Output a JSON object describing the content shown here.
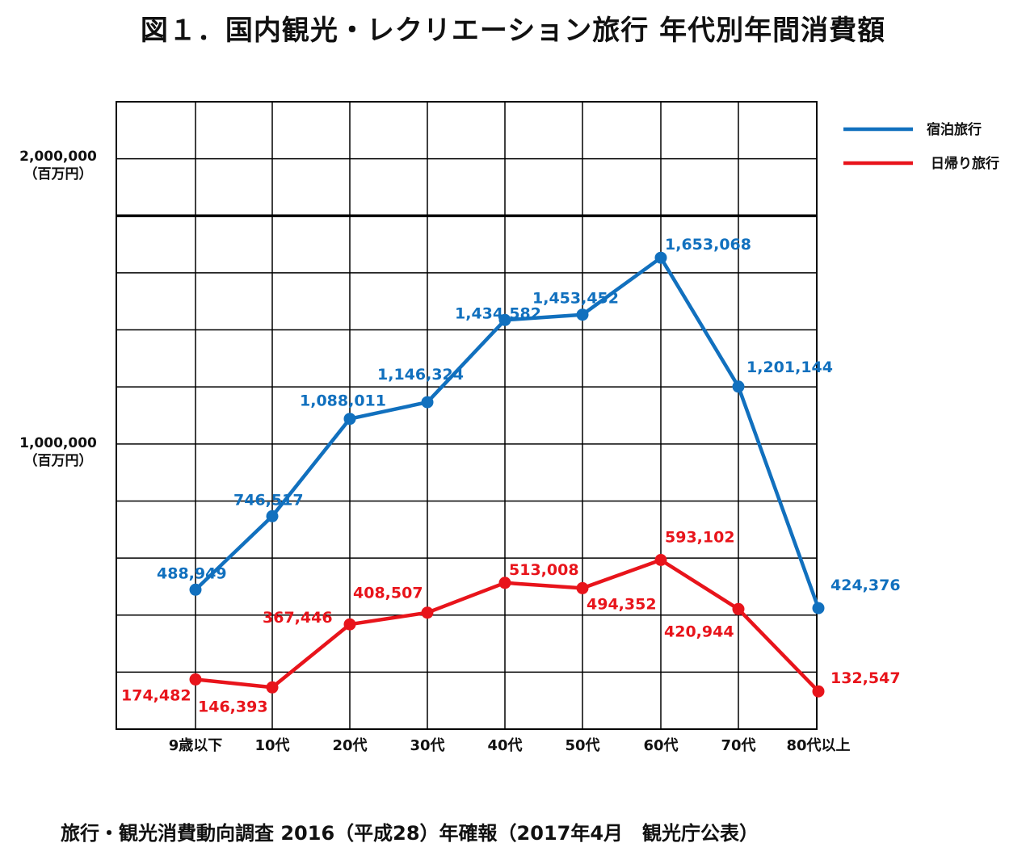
{
  "title": "図１．国内観光・レクリエーション旅行  年代別年間消費額",
  "source": "旅行・観光消費動向調査  2016（平成28）年確報（2017年4月　観光庁公表）",
  "chart_data": {
    "type": "line",
    "title": "図１．国内観光・レクリエーション旅行  年代別年間消費額",
    "categories": [
      "9歳以下",
      "10代",
      "20代",
      "30代",
      "40代",
      "50代",
      "60代",
      "70代",
      "80代以上"
    ],
    "series": [
      {
        "name": "宿泊旅行",
        "color": "#1170BE",
        "values": [
          488949,
          746517,
          1088011,
          1146324,
          1434582,
          1453452,
          1653068,
          1201144,
          424376
        ],
        "labels": [
          "488,949",
          "746,517",
          "1,088,011",
          "1,146,324",
          "1,434,582",
          "1,453,452",
          "1,653,068",
          "1,201,144",
          "424,376"
        ]
      },
      {
        "name": "日帰り旅行",
        "color": "#E8141B",
        "values": [
          174482,
          146393,
          367446,
          408507,
          513008,
          494352,
          593102,
          420944,
          132547
        ],
        "labels": [
          "174,482",
          "146,393",
          "367,446",
          "408,507",
          "513,008",
          "494,352",
          "593,102",
          "420,944",
          "132,547"
        ]
      }
    ],
    "y_ticks": [
      {
        "value": 2000000,
        "label": "2,000,000",
        "unit": "（百万円）"
      },
      {
        "value": 1000000,
        "label": "1,000,000",
        "unit": "（百万円）"
      }
    ],
    "ylim": [
      0,
      2200000
    ],
    "grid": true,
    "legend": "top-right"
  }
}
